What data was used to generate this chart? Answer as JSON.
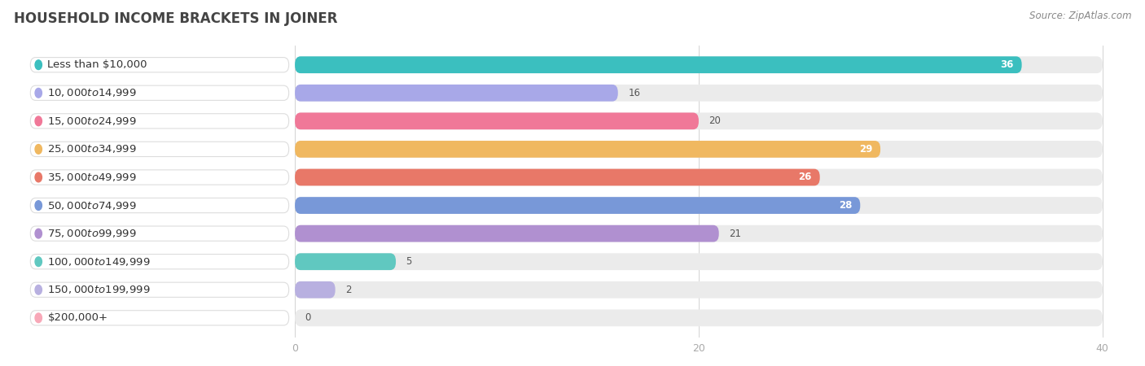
{
  "title": "HOUSEHOLD INCOME BRACKETS IN JOINER",
  "source": "Source: ZipAtlas.com",
  "categories": [
    "Less than $10,000",
    "$10,000 to $14,999",
    "$15,000 to $24,999",
    "$25,000 to $34,999",
    "$35,000 to $49,999",
    "$50,000 to $74,999",
    "$75,000 to $99,999",
    "$100,000 to $149,999",
    "$150,000 to $199,999",
    "$200,000+"
  ],
  "values": [
    36,
    16,
    20,
    29,
    26,
    28,
    21,
    5,
    2,
    0
  ],
  "bar_colors": [
    "#3bbfbf",
    "#a8a8e8",
    "#f07898",
    "#f0b860",
    "#e87868",
    "#7898d8",
    "#b090d0",
    "#60c8c0",
    "#b8b0e0",
    "#f8a8b8"
  ],
  "bar_colors_light": [
    "#3bbfbf",
    "#c8c8f8",
    "#f8a8c0",
    "#f8d090",
    "#f8a898",
    "#a8c0f0",
    "#d0b8e8",
    "#90d8d0",
    "#d0c8f0",
    "#ffc8d8"
  ],
  "xlim_data": [
    0,
    40
  ],
  "x_label_offset": -12,
  "background_color": "#ffffff",
  "bar_bg_color": "#ebebeb",
  "title_fontsize": 12,
  "label_fontsize": 9.5,
  "value_fontsize": 8.5,
  "source_fontsize": 8.5,
  "bar_height": 0.6,
  "value_threshold_inside": 22
}
